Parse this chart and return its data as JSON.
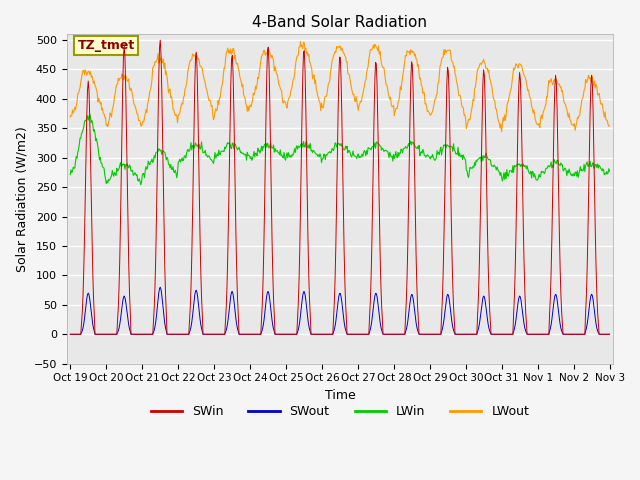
{
  "title": "4-Band Solar Radiation",
  "ylabel": "Solar Radiation (W/m2)",
  "xlabel": "Time",
  "ylim": [
    -50,
    510
  ],
  "annotation": "TZ_tmet",
  "legend": [
    "SWin",
    "SWout",
    "LWin",
    "LWout"
  ],
  "legend_colors": [
    "#cc0000",
    "#0000cc",
    "#00cc00",
    "#ff9900"
  ],
  "plot_bg_color": "#e8e8e8",
  "fig_bg_color": "#f5f5f5",
  "tick_labels": [
    "Oct 19",
    "Oct 20",
    "Oct 21",
    "Oct 22",
    "Oct 23",
    "Oct 24",
    "Oct 25",
    "Oct 26",
    "Oct 27",
    "Oct 28",
    "Oct 29",
    "Oct 30",
    "Oct 31",
    "Nov 1",
    "Nov 2",
    "Nov 3"
  ],
  "grid_color": "#ffffff",
  "num_days": 15,
  "peak_SWin": [
    430,
    490,
    500,
    480,
    475,
    490,
    485,
    475,
    465,
    465,
    455,
    450,
    445,
    440,
    440
  ],
  "peak_SWout": [
    70,
    65,
    80,
    75,
    73,
    73,
    73,
    70,
    70,
    68,
    68,
    65,
    65,
    68,
    68
  ],
  "lwout_night": [
    355,
    340,
    340,
    355,
    355,
    375,
    370,
    370,
    365,
    355,
    350,
    330,
    340,
    340,
    340
  ],
  "lwout_peak": [
    445,
    438,
    468,
    472,
    480,
    480,
    488,
    488,
    486,
    480,
    478,
    458,
    458,
    430,
    430
  ],
  "lwin_night": [
    260,
    255,
    268,
    290,
    298,
    298,
    298,
    298,
    298,
    298,
    295,
    272,
    262,
    267,
    272
  ],
  "lwin_peak": [
    370,
    288,
    312,
    322,
    322,
    322,
    322,
    322,
    322,
    322,
    320,
    302,
    288,
    292,
    288
  ]
}
